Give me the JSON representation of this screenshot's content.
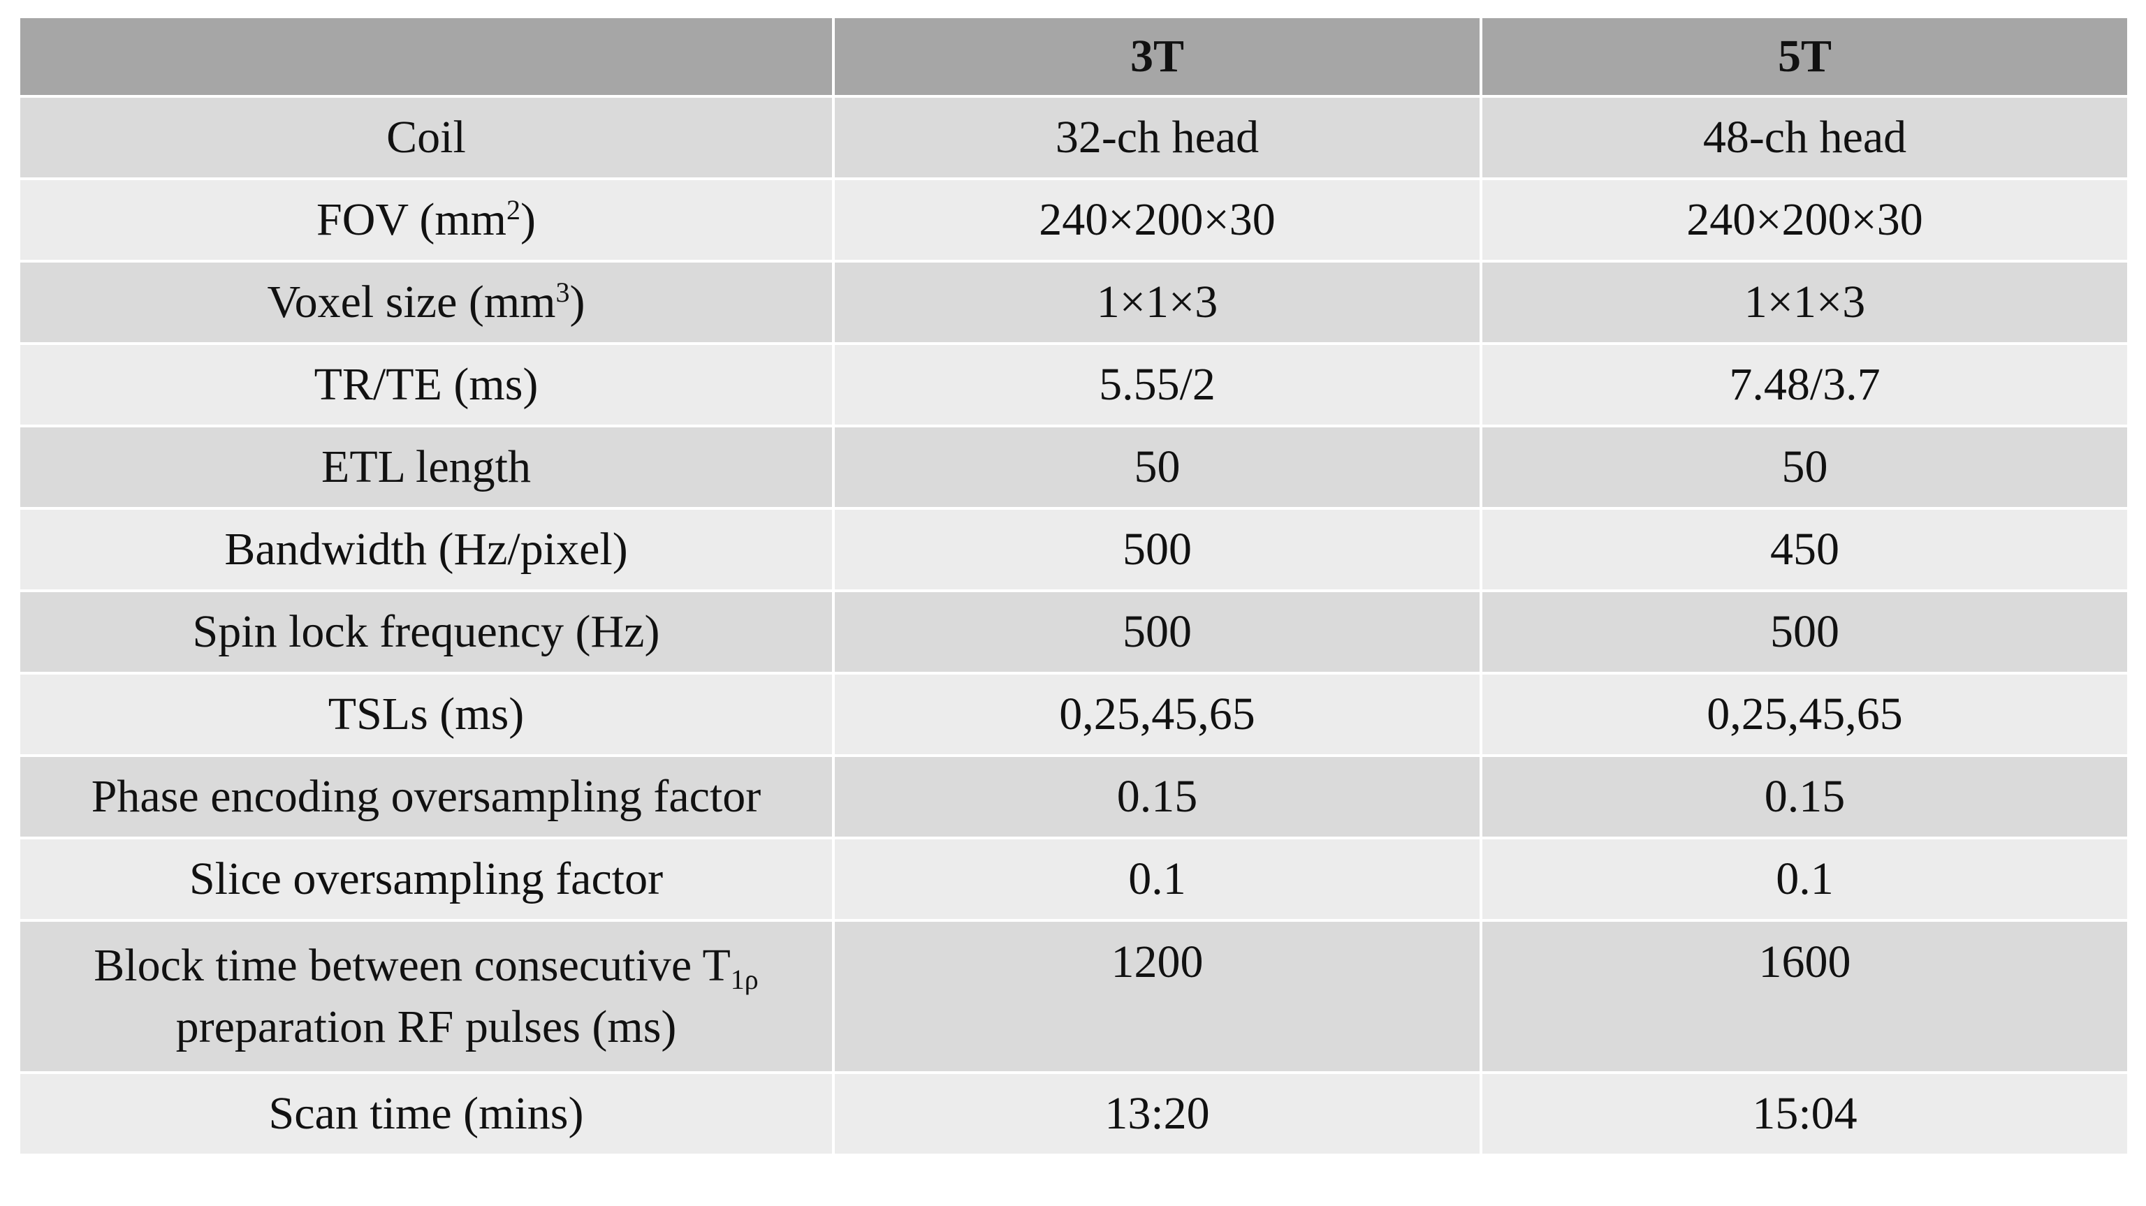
{
  "table": {
    "header": [
      "3T",
      "5T"
    ],
    "rows": [
      {
        "label": [
          [
            {
              "text": "Coil"
            }
          ]
        ],
        "values": [
          "32-ch head",
          "48-ch head"
        ]
      },
      {
        "label": [
          [
            {
              "text": "FOV (mm"
            },
            {
              "sup": "2"
            },
            {
              "text": ")"
            }
          ]
        ],
        "values": [
          "240×200×30",
          "240×200×30"
        ]
      },
      {
        "label": [
          [
            {
              "text": "Voxel size (mm"
            },
            {
              "sup": "3"
            },
            {
              "text": ")"
            }
          ]
        ],
        "values": [
          "1×1×3",
          "1×1×3"
        ]
      },
      {
        "label": [
          [
            {
              "text": "TR/TE (ms)"
            }
          ]
        ],
        "values": [
          "5.55/2",
          "7.48/3.7"
        ]
      },
      {
        "label": [
          [
            {
              "text": "ETL length"
            }
          ]
        ],
        "values": [
          "50",
          "50"
        ]
      },
      {
        "label": [
          [
            {
              "text": "Bandwidth (Hz/pixel)"
            }
          ]
        ],
        "values": [
          "500",
          "450"
        ]
      },
      {
        "label": [
          [
            {
              "text": "Spin lock frequency (Hz)"
            }
          ]
        ],
        "values": [
          "500",
          "500"
        ]
      },
      {
        "label": [
          [
            {
              "text": "TSLs (ms)"
            }
          ]
        ],
        "values": [
          "0,25,45,65",
          "0,25,45,65"
        ]
      },
      {
        "label": [
          [
            {
              "text": "Phase encoding oversampling factor"
            }
          ]
        ],
        "values": [
          "0.15",
          "0.15"
        ]
      },
      {
        "label": [
          [
            {
              "text": "Slice oversampling factor"
            }
          ]
        ],
        "values": [
          "0.1",
          "0.1"
        ]
      },
      {
        "label": [
          [
            {
              "text": "Block time between consecutive T"
            },
            {
              "sub": "1ρ"
            }
          ],
          [
            {
              "text": "preparation RF pulses (ms)"
            }
          ]
        ],
        "values": [
          "1200",
          "1600"
        ]
      },
      {
        "label": [
          [
            {
              "text": "Scan time (mins)"
            }
          ]
        ],
        "values": [
          "13:20",
          "15:04"
        ]
      }
    ]
  }
}
